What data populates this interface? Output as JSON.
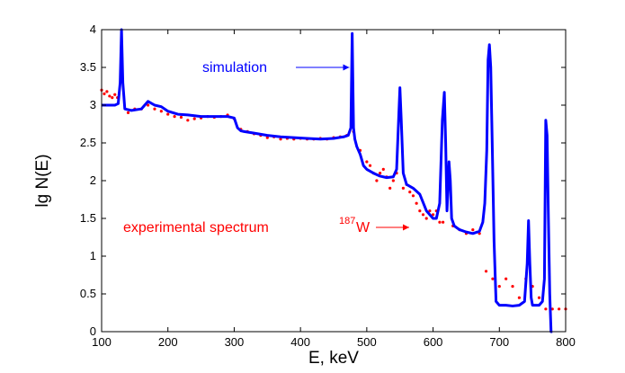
{
  "chart_data": {
    "type": "line",
    "xlabel": "E, keV",
    "ylabel": "lg N(E)",
    "xlim": [
      100,
      800
    ],
    "ylim": [
      0,
      4
    ],
    "x_ticks": [
      100,
      200,
      300,
      400,
      500,
      600,
      700,
      800
    ],
    "y_ticks": [
      0,
      0.5,
      1,
      1.5,
      2,
      2.5,
      3,
      3.5,
      4
    ],
    "x_tick_labels": [
      "100",
      "200",
      "300",
      "400",
      "500",
      "600",
      "700",
      "800"
    ],
    "y_tick_labels": [
      "0",
      "0.5",
      "1",
      "1.5",
      "2",
      "2.5",
      "3",
      "3.5",
      "4"
    ],
    "grid": false,
    "annotations": [
      {
        "text": "simulation",
        "color": "#0000ff",
        "arrow_to": [
          479,
          3.5
        ]
      },
      {
        "text": "experimental spectrum ",
        "sup": "187",
        "suffix": "W",
        "color": "#ff0000",
        "arrow_to": [
          605,
          1.45
        ]
      }
    ],
    "series": [
      {
        "style": "line",
        "color": "#0000ff",
        "x": [
          100,
          120,
          125,
          128,
          130,
          132,
          135,
          145,
          160,
          170,
          180,
          190,
          200,
          215,
          230,
          250,
          270,
          290,
          300,
          305,
          310,
          315,
          330,
          350,
          370,
          390,
          410,
          430,
          450,
          465,
          472,
          476,
          478,
          480,
          482,
          485,
          490,
          495,
          500,
          510,
          520,
          530,
          540,
          545,
          548,
          550,
          552,
          555,
          560,
          570,
          580,
          590,
          600,
          605,
          610,
          614,
          617,
          619,
          621,
          623,
          624,
          626,
          628,
          632,
          640,
          650,
          660,
          670,
          675,
          678,
          681,
          683,
          685,
          687,
          689,
          692,
          695,
          700,
          710,
          720,
          730,
          738,
          742,
          744,
          746,
          748,
          750,
          755,
          760,
          765,
          768,
          770,
          772,
          774,
          776,
          778,
          780
        ],
        "y": [
          3.0,
          3.0,
          3.02,
          3.3,
          4.0,
          3.3,
          2.95,
          2.93,
          2.95,
          3.05,
          3.0,
          2.98,
          2.92,
          2.88,
          2.87,
          2.85,
          2.85,
          2.85,
          2.83,
          2.7,
          2.66,
          2.65,
          2.63,
          2.6,
          2.58,
          2.57,
          2.56,
          2.55,
          2.56,
          2.58,
          2.6,
          2.7,
          3.95,
          2.7,
          2.55,
          2.45,
          2.35,
          2.2,
          2.15,
          2.1,
          2.06,
          2.04,
          2.05,
          2.15,
          2.8,
          3.23,
          2.8,
          2.1,
          1.95,
          1.9,
          1.82,
          1.6,
          1.5,
          1.5,
          1.7,
          2.8,
          3.17,
          2.5,
          1.6,
          2.0,
          2.25,
          2.0,
          1.5,
          1.4,
          1.35,
          1.32,
          1.3,
          1.33,
          1.45,
          1.7,
          2.4,
          3.6,
          3.8,
          3.5,
          2.6,
          1.2,
          0.4,
          0.35,
          0.35,
          0.34,
          0.35,
          0.4,
          0.9,
          1.47,
          0.9,
          0.45,
          0.35,
          0.35,
          0.35,
          0.4,
          0.7,
          2.8,
          2.6,
          1.5,
          0.5,
          0.0,
          0.0
        ]
      },
      {
        "style": "scatter",
        "color": "#ff0000",
        "x": [
          100,
          104,
          108,
          112,
          116,
          120,
          124,
          140,
          150,
          160,
          170,
          180,
          190,
          200,
          210,
          220,
          230,
          240,
          250,
          260,
          270,
          280,
          290,
          300,
          310,
          320,
          330,
          340,
          350,
          360,
          370,
          380,
          390,
          400,
          410,
          420,
          430,
          440,
          450,
          460,
          470,
          480,
          490,
          500,
          505,
          510,
          515,
          520,
          525,
          530,
          535,
          540,
          545,
          555,
          560,
          565,
          570,
          575,
          580,
          585,
          590,
          595,
          600,
          605,
          610,
          615,
          630,
          640,
          650,
          660,
          670,
          680,
          690,
          700,
          710,
          720,
          730,
          740,
          750,
          760,
          770,
          780,
          790,
          800
        ],
        "y": [
          3.2,
          3.15,
          3.18,
          3.12,
          3.1,
          3.14,
          3.1,
          2.9,
          2.95,
          2.95,
          3.0,
          2.95,
          2.92,
          2.88,
          2.85,
          2.84,
          2.8,
          2.82,
          2.83,
          2.85,
          2.84,
          2.85,
          2.87,
          2.82,
          2.68,
          2.65,
          2.62,
          2.6,
          2.57,
          2.58,
          2.55,
          2.56,
          2.55,
          2.56,
          2.55,
          2.55,
          2.56,
          2.55,
          2.57,
          2.58,
          2.6,
          2.65,
          2.4,
          2.25,
          2.2,
          2.1,
          2.0,
          2.1,
          2.15,
          2.05,
          1.9,
          2.0,
          2.1,
          1.9,
          1.95,
          1.85,
          1.8,
          1.7,
          1.6,
          1.55,
          1.5,
          1.6,
          1.55,
          1.6,
          1.45,
          1.45,
          1.4,
          1.35,
          1.3,
          1.35,
          1.3,
          0.8,
          0.7,
          0.6,
          0.7,
          0.6,
          0.45,
          0.7,
          0.6,
          0.45,
          0.3,
          0.3,
          0.3,
          0.3
        ]
      }
    ]
  }
}
